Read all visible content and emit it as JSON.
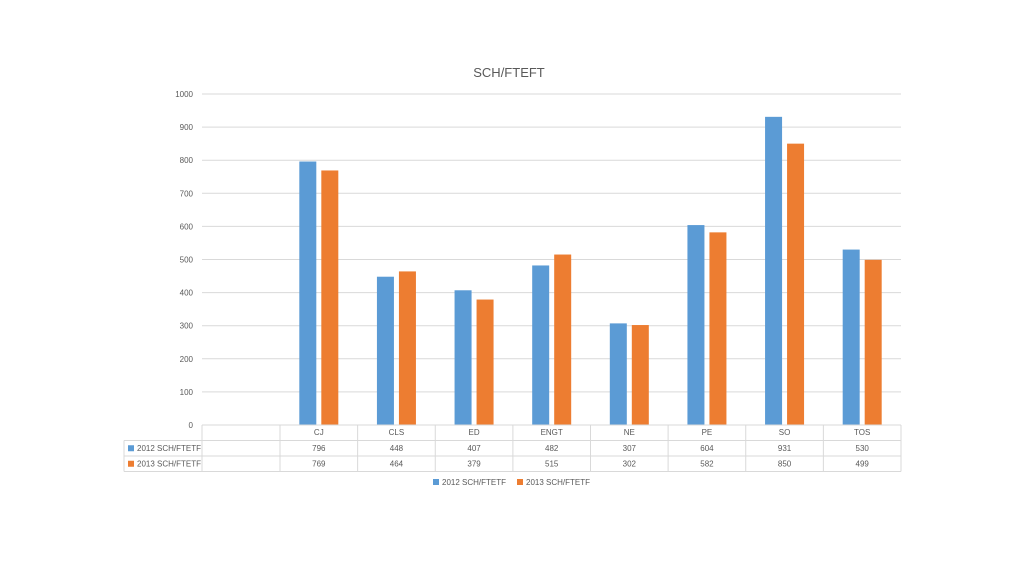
{
  "chart_data": {
    "type": "bar",
    "title": "SCH/FTEFT",
    "categories": [
      "CJ",
      "CLS",
      "ED",
      "ENGT",
      "NE",
      "PE",
      "SO",
      "TOS"
    ],
    "series": [
      {
        "name": "2012 SCH/FTETF",
        "color": "#5b9bd5",
        "values": [
          796,
          448,
          407,
          482,
          307,
          604,
          931,
          530
        ]
      },
      {
        "name": "2013 SCH/FTETF",
        "color": "#ed7d31",
        "values": [
          769,
          464,
          379,
          515,
          302,
          582,
          850,
          499
        ]
      }
    ],
    "ylim": [
      0,
      1000
    ],
    "yticks": [
      0,
      100,
      200,
      300,
      400,
      500,
      600,
      700,
      800,
      900,
      1000
    ],
    "grid": true,
    "data_table": true,
    "legend_position": "bottom"
  }
}
